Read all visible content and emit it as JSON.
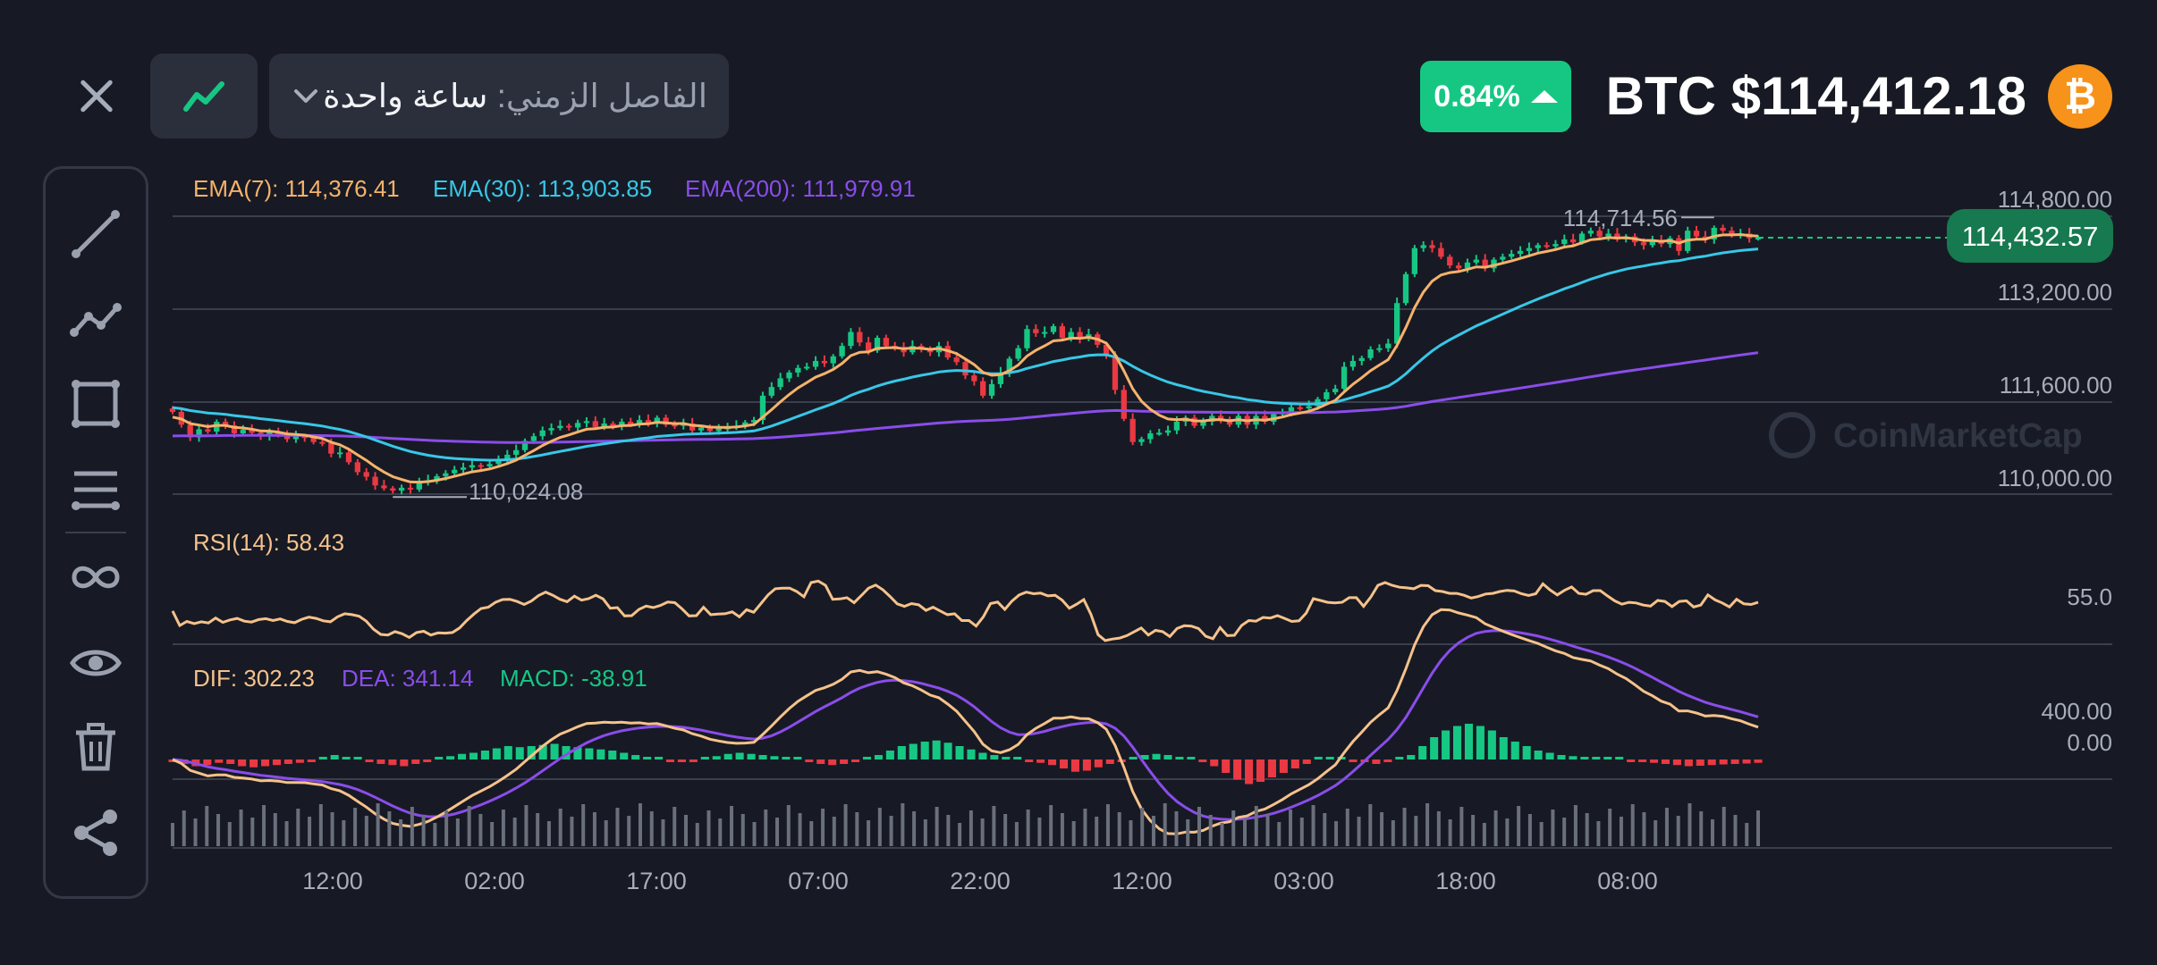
{
  "header": {
    "interval_label": "الفاصل الزمني:",
    "interval_value": "ساعة واحدة",
    "change_percent": "0.84%",
    "price_title": "BTC $114,412.18",
    "coin_symbol": "₿"
  },
  "toolbar": {
    "tools": [
      "trend-line-icon",
      "polyline-icon",
      "rectangle-icon",
      "horizontal-lines-icon",
      "infinity-icon",
      "eye-icon",
      "trash-icon",
      "share-icon"
    ]
  },
  "watermark": "CoinMarketCap",
  "colors": {
    "background": "#171a24",
    "up": "#16c784",
    "down": "#ea3943",
    "ema7": "#f6b26b",
    "ema30": "#38c7e8",
    "ema200": "#8a4dea",
    "rsi": "#f6c28b",
    "dif": "#f6c28b",
    "dea": "#8a4dea",
    "brand": "#f7931a"
  },
  "chart_data": [
    {
      "type": "candlestick",
      "panel": "price",
      "indicator_labels": [
        "EMA(7): 114,376.41",
        "EMA(30): 113,903.85",
        "EMA(200): 111,979.91"
      ],
      "y_ticks": [
        "114,800.00",
        "113,200.00",
        "111,600.00",
        "110,000.00"
      ],
      "ylim": [
        110000,
        114800
      ],
      "last_price_label": "114,432.57",
      "high_label": "114,714.56",
      "low_label": "110,024.08",
      "x_ticks": [
        "12:00",
        "02:00",
        "17:00",
        "07:00",
        "22:00",
        "12:00",
        "03:00",
        "18:00",
        "08:00"
      ],
      "close_series": [
        111420,
        111200,
        110980,
        111120,
        111080,
        111250,
        111190,
        111050,
        111110,
        111060,
        111000,
        111080,
        111020,
        110950,
        111000,
        110980,
        110900,
        110880,
        110700,
        110720,
        110550,
        110380,
        110300,
        110150,
        110100,
        110060,
        110110,
        110080,
        110200,
        110240,
        110310,
        110360,
        110420,
        110460,
        110500,
        110480,
        110520,
        110600,
        110680,
        110760,
        110920,
        111000,
        111100,
        111140,
        111180,
        111150,
        111230,
        111260,
        111160,
        111220,
        111180,
        111250,
        111200,
        111280,
        111230,
        111320,
        111200,
        111180,
        111220,
        111100,
        111150,
        111090,
        111140,
        111150,
        111180,
        111240,
        111280,
        111700,
        111850,
        112000,
        112100,
        112180,
        112200,
        112300,
        112260,
        112380,
        112560,
        112800,
        112620,
        112480,
        112700,
        112560,
        112540,
        112450,
        112560,
        112500,
        112450,
        112560,
        112360,
        112280,
        112050,
        111950,
        111700,
        111900,
        112100,
        112340,
        112520,
        112850,
        112780,
        112800,
        112900,
        112700,
        112800,
        112680,
        112760,
        112580,
        112400,
        111800,
        111300,
        110900,
        110950,
        111050,
        111060,
        111100,
        111250,
        111320,
        111180,
        111250,
        111350,
        111300,
        111200,
        111350,
        111200,
        111350,
        111250,
        111380,
        111420,
        111500,
        111480,
        111520,
        111640,
        111760,
        111820,
        112200,
        112300,
        112350,
        112500,
        112520,
        112600,
        113300,
        113800,
        114250,
        114300,
        114250,
        114100,
        113950,
        113900,
        114000,
        114050,
        113900,
        114050,
        114100,
        114150,
        114200,
        114250,
        114300,
        114280,
        114320,
        114400,
        114350,
        114500,
        114550,
        114450,
        114500,
        114400,
        114450,
        114350,
        114300,
        114380,
        114320,
        114420,
        114200,
        114550,
        114450,
        114400,
        114600,
        114550,
        114480,
        114500,
        114420,
        114430
      ]
    },
    {
      "type": "line",
      "panel": "rsi",
      "indicator_label": "RSI(14): 58.43",
      "y_ticks": [
        "55.0"
      ],
      "values": [
        52.5,
        47.8,
        49.1,
        48.4,
        49.0,
        48.6,
        50.2,
        48.8,
        49.6,
        50.1,
        49.2,
        48.9,
        49.7,
        50.0,
        49.4,
        49.9,
        49.1,
        48.7,
        49.8,
        50.5,
        50.1,
        49.3,
        49.0,
        50.6,
        51.6,
        51.3,
        50.8,
        49.2,
        46.6,
        44.9,
        44.7,
        45.8,
        45.1,
        43.9,
        45.5,
        45.9,
        44.7,
        45.4,
        45.3,
        45.5,
        47.0,
        49.4,
        51.5,
        53.3,
        53.7,
        55.3,
        56.2,
        56.3,
        55.6,
        54.6,
        55.7,
        57.5,
        58.6,
        57.6,
        56.3,
        55.5,
        57.3,
        56.0,
        56.5,
        57.6,
        56.4,
        53.4,
        53.6,
        50.9,
        51.0,
        53.0,
        54.1,
        53.6,
        54.3,
        55.4,
        55.2,
        53.2,
        50.9,
        51.0,
        53.7,
        51.3,
        51.5,
        51.6,
        52.2,
        50.6,
        52.9,
        52.1,
        54.9,
        57.7,
        59.7,
        59.9,
        59.9,
        58.8,
        57.1,
        61.7,
        62.2,
        60.8,
        56.3,
        56.4,
        56.8,
        55.2,
        57.5,
        59.9,
        60.9,
        59.4,
        57.2,
        54.8,
        54.0,
        54.9,
        54.5,
        52.7,
        53.7,
        52.5,
        51.3,
        51.6,
        49.4,
        49.4,
        47.6,
        50.6,
        54.9,
        55.4,
        53.0,
        55.7,
        57.7,
        58.6,
        58.1,
        58.3,
        57.4,
        57.6,
        56.0,
        53.4,
        54.7,
        56.2,
        51.4,
        44.8,
        42.9,
        43.4,
        43.7,
        44.5,
        45.7,
        47.0,
        44.7,
        46.2,
        45.8,
        44.2,
        46.8,
        47.7,
        47.6,
        46.8,
        44.3,
        43.5,
        47.1,
        44.5,
        44.6,
        47.8,
        49.4,
        49.2,
        50.4,
        50.2,
        51.0,
        50.1,
        49.1,
        49.3,
        51.8,
        56.5,
        55.9,
        55.3,
        55.1,
        55.3,
        56.8,
        56.8,
        54.0,
        57.0,
        60.8,
        61.7,
        60.8,
        60.2,
        60.0,
        59.7,
        60.8,
        60.7,
        59.1,
        58.8,
        58.2,
        58.2,
        57.6,
        56.7,
        57.2,
        58.0,
        58.2,
        58.8,
        59.2,
        59.0,
        58.1,
        57.5,
        58.1,
        61.3,
        59.3,
        57.7,
        59.2,
        60.3,
        58.2,
        57.9,
        59.1,
        59.1,
        57.4,
        55.8,
        54.7,
        55.3,
        55.1,
        54.4,
        54.1,
        55.9,
        55.6,
        53.9,
        55.6,
        55.8,
        53.8,
        54.4,
        57.7,
        56.1,
        55.1,
        53.8,
        56.3,
        54.8,
        54.6,
        55.3
      ]
    },
    {
      "type": "bar",
      "panel": "macd",
      "indicator_labels": [
        "DIF: 302.23",
        "DEA: 341.14",
        "MACD: -38.91"
      ],
      "y_ticks": [
        "400.00",
        "0.00"
      ],
      "histogram": [
        -10,
        -20,
        -30,
        -25,
        -15,
        -20,
        -30,
        -35,
        -30,
        -25,
        -20,
        -15,
        -5,
        10,
        20,
        10,
        5,
        -10,
        -20,
        -25,
        -30,
        -20,
        -10,
        5,
        15,
        25,
        30,
        40,
        50,
        60,
        55,
        60,
        65,
        70,
        60,
        55,
        50,
        45,
        40,
        30,
        20,
        10,
        5,
        -5,
        -10,
        -5,
        5,
        15,
        25,
        30,
        25,
        20,
        15,
        10,
        5,
        -10,
        -20,
        -25,
        -20,
        -5,
        5,
        20,
        40,
        60,
        70,
        80,
        85,
        75,
        60,
        45,
        30,
        20,
        10,
        5,
        -5,
        -15,
        -25,
        -40,
        -55,
        -50,
        -35,
        -20,
        -5,
        10,
        20,
        25,
        20,
        10,
        0,
        -10,
        -30,
        -60,
        -90,
        -110,
        -100,
        -80,
        -60,
        -40,
        -20,
        0,
        10,
        5,
        -5,
        -10,
        -20,
        -10,
        0,
        20,
        60,
        100,
        130,
        150,
        160,
        150,
        130,
        100,
        80,
        60,
        40,
        30,
        20,
        15,
        10,
        8,
        5,
        0,
        -5,
        -10,
        -15,
        -20,
        -25,
        -30,
        -28,
        -25,
        -22,
        -20,
        -18,
        -15
      ]
    }
  ]
}
